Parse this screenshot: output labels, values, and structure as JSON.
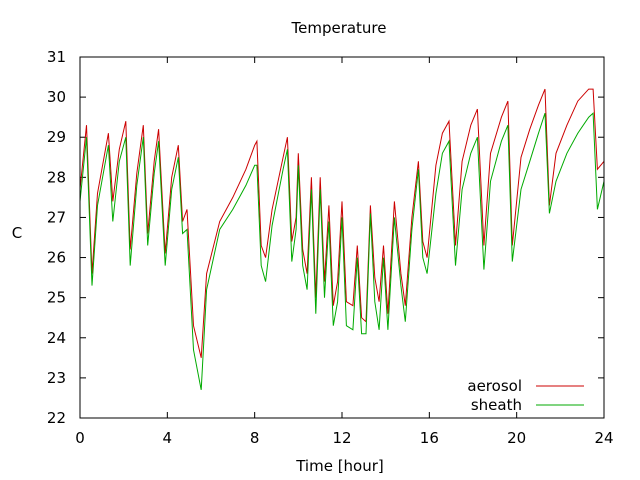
{
  "chart_data": {
    "type": "line",
    "title": "Temperature",
    "xlabel": "Time [hour]",
    "ylabel": "C",
    "xlim": [
      0,
      24
    ],
    "ylim": [
      22,
      31
    ],
    "xticks": [
      0,
      4,
      8,
      12,
      16,
      20,
      24
    ],
    "yticks": [
      22,
      23,
      24,
      25,
      26,
      27,
      28,
      29,
      30,
      31
    ],
    "grid": false,
    "legend_position": "bottom-right",
    "series": [
      {
        "name": "aerosol",
        "color": "#cc0000",
        "points": [
          [
            0,
            27.7
          ],
          [
            0.3,
            29.3
          ],
          [
            0.55,
            25.6
          ],
          [
            0.8,
            27.6
          ],
          [
            1.3,
            29.1
          ],
          [
            1.5,
            27.4
          ],
          [
            1.8,
            28.7
          ],
          [
            2.1,
            29.4
          ],
          [
            2.3,
            26.2
          ],
          [
            2.6,
            28.1
          ],
          [
            2.9,
            29.3
          ],
          [
            3.1,
            26.6
          ],
          [
            3.4,
            28.4
          ],
          [
            3.6,
            29.2
          ],
          [
            3.9,
            26.1
          ],
          [
            4.2,
            28.0
          ],
          [
            4.5,
            28.8
          ],
          [
            4.7,
            26.9
          ],
          [
            4.9,
            27.2
          ],
          [
            5.2,
            24.3
          ],
          [
            5.55,
            23.5
          ],
          [
            5.8,
            25.6
          ],
          [
            6.4,
            26.9
          ],
          [
            7.0,
            27.5
          ],
          [
            7.6,
            28.2
          ],
          [
            8.0,
            28.8
          ],
          [
            8.1,
            28.9
          ],
          [
            8.3,
            26.3
          ],
          [
            8.5,
            26.0
          ],
          [
            8.8,
            27.2
          ],
          [
            9.3,
            28.5
          ],
          [
            9.5,
            29.0
          ],
          [
            9.7,
            26.4
          ],
          [
            9.9,
            27.0
          ],
          [
            10.0,
            28.6
          ],
          [
            10.2,
            26.2
          ],
          [
            10.4,
            25.6
          ],
          [
            10.6,
            28.0
          ],
          [
            10.8,
            25.0
          ],
          [
            11.0,
            28.0
          ],
          [
            11.2,
            25.4
          ],
          [
            11.4,
            27.3
          ],
          [
            11.6,
            24.8
          ],
          [
            11.8,
            25.4
          ],
          [
            12.0,
            27.4
          ],
          [
            12.2,
            24.9
          ],
          [
            12.5,
            24.8
          ],
          [
            12.7,
            26.3
          ],
          [
            12.9,
            24.5
          ],
          [
            13.1,
            24.4
          ],
          [
            13.3,
            27.3
          ],
          [
            13.5,
            25.5
          ],
          [
            13.7,
            24.9
          ],
          [
            13.9,
            26.3
          ],
          [
            14.1,
            24.6
          ],
          [
            14.4,
            27.4
          ],
          [
            14.7,
            25.6
          ],
          [
            14.9,
            24.8
          ],
          [
            15.2,
            27.0
          ],
          [
            15.5,
            28.4
          ],
          [
            15.7,
            26.4
          ],
          [
            15.9,
            26.0
          ],
          [
            16.3,
            28.3
          ],
          [
            16.6,
            29.1
          ],
          [
            16.9,
            29.4
          ],
          [
            17.2,
            26.3
          ],
          [
            17.5,
            28.4
          ],
          [
            17.9,
            29.3
          ],
          [
            18.2,
            29.7
          ],
          [
            18.5,
            26.3
          ],
          [
            18.8,
            28.6
          ],
          [
            19.3,
            29.5
          ],
          [
            19.6,
            29.9
          ],
          [
            19.8,
            26.3
          ],
          [
            20.2,
            28.5
          ],
          [
            20.6,
            29.2
          ],
          [
            21.0,
            29.8
          ],
          [
            21.3,
            30.2
          ],
          [
            21.5,
            27.3
          ],
          [
            21.8,
            28.6
          ],
          [
            22.3,
            29.3
          ],
          [
            22.8,
            29.9
          ],
          [
            23.3,
            30.2
          ],
          [
            23.5,
            30.2
          ],
          [
            23.7,
            28.2
          ],
          [
            24,
            28.4
          ]
        ]
      },
      {
        "name": "sheath",
        "color": "#00aa00",
        "points": [
          [
            0,
            27.4
          ],
          [
            0.3,
            29.0
          ],
          [
            0.55,
            25.3
          ],
          [
            0.8,
            27.3
          ],
          [
            1.3,
            28.8
          ],
          [
            1.5,
            26.9
          ],
          [
            1.8,
            28.4
          ],
          [
            2.1,
            29.0
          ],
          [
            2.3,
            25.8
          ],
          [
            2.6,
            27.8
          ],
          [
            2.9,
            29.0
          ],
          [
            3.1,
            26.3
          ],
          [
            3.4,
            28.1
          ],
          [
            3.6,
            28.9
          ],
          [
            3.9,
            25.8
          ],
          [
            4.2,
            27.7
          ],
          [
            4.5,
            28.5
          ],
          [
            4.7,
            26.6
          ],
          [
            4.9,
            26.7
          ],
          [
            5.2,
            23.7
          ],
          [
            5.55,
            22.7
          ],
          [
            5.8,
            25.2
          ],
          [
            6.4,
            26.7
          ],
          [
            7.0,
            27.2
          ],
          [
            7.6,
            27.8
          ],
          [
            8.0,
            28.3
          ],
          [
            8.1,
            28.3
          ],
          [
            8.3,
            25.8
          ],
          [
            8.5,
            25.4
          ],
          [
            8.8,
            26.8
          ],
          [
            9.3,
            28.2
          ],
          [
            9.5,
            28.7
          ],
          [
            9.7,
            25.9
          ],
          [
            9.9,
            26.7
          ],
          [
            10.0,
            28.3
          ],
          [
            10.2,
            25.8
          ],
          [
            10.4,
            25.2
          ],
          [
            10.6,
            27.7
          ],
          [
            10.8,
            24.6
          ],
          [
            11.0,
            27.7
          ],
          [
            11.2,
            25.0
          ],
          [
            11.4,
            26.9
          ],
          [
            11.6,
            24.3
          ],
          [
            11.8,
            24.9
          ],
          [
            12.0,
            27.0
          ],
          [
            12.2,
            24.3
          ],
          [
            12.5,
            24.2
          ],
          [
            12.7,
            26.0
          ],
          [
            12.9,
            24.1
          ],
          [
            13.1,
            24.1
          ],
          [
            13.3,
            27.1
          ],
          [
            13.5,
            24.9
          ],
          [
            13.7,
            24.2
          ],
          [
            13.9,
            26.0
          ],
          [
            14.1,
            24.2
          ],
          [
            14.4,
            27.0
          ],
          [
            14.7,
            25.3
          ],
          [
            14.9,
            24.4
          ],
          [
            15.2,
            26.7
          ],
          [
            15.5,
            28.2
          ],
          [
            15.7,
            26.0
          ],
          [
            15.9,
            25.6
          ],
          [
            16.3,
            27.6
          ],
          [
            16.6,
            28.6
          ],
          [
            16.9,
            28.9
          ],
          [
            17.2,
            25.8
          ],
          [
            17.5,
            27.7
          ],
          [
            17.9,
            28.6
          ],
          [
            18.2,
            29.0
          ],
          [
            18.5,
            25.7
          ],
          [
            18.8,
            27.9
          ],
          [
            19.3,
            28.9
          ],
          [
            19.6,
            29.3
          ],
          [
            19.8,
            25.9
          ],
          [
            20.2,
            27.7
          ],
          [
            20.6,
            28.4
          ],
          [
            21.0,
            29.1
          ],
          [
            21.3,
            29.6
          ],
          [
            21.5,
            27.1
          ],
          [
            21.8,
            27.9
          ],
          [
            22.3,
            28.6
          ],
          [
            22.8,
            29.1
          ],
          [
            23.3,
            29.5
          ],
          [
            23.5,
            29.6
          ],
          [
            23.7,
            27.2
          ],
          [
            24,
            27.9
          ]
        ]
      }
    ]
  }
}
